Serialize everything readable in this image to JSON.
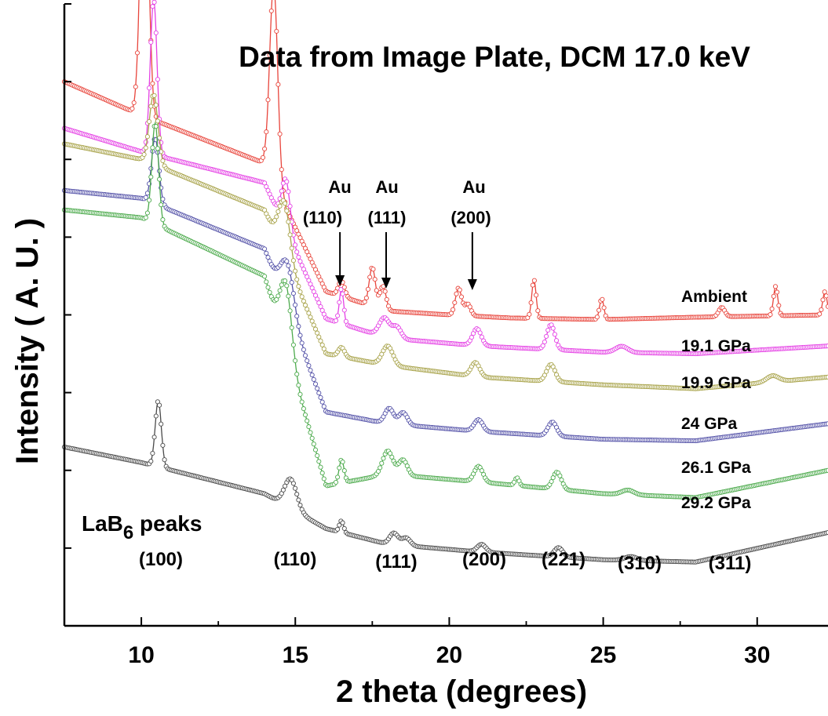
{
  "chart_data": {
    "type": "line",
    "title": "Data from Image Plate, DCM 17.0 keV",
    "xlabel": "2 theta (degrees)",
    "ylabel": "Intensity ( A. U. )",
    "xlim": [
      7.5,
      32.3
    ],
    "ylim": [
      0,
      8
    ],
    "xticks": [
      10,
      15,
      20,
      25,
      30
    ],
    "xtick_labels": [
      "10",
      "15",
      "20",
      "25",
      "30"
    ],
    "y_tick_labels_shown": false,
    "series": [
      {
        "name": "Ambient",
        "color": "#e8453c",
        "baseline": [
          [
            7.5,
            7.0
          ],
          [
            9.8,
            6.6
          ],
          [
            14.0,
            5.95
          ],
          [
            16.0,
            4.3
          ],
          [
            18.0,
            4.05
          ],
          [
            20.0,
            4.0
          ],
          [
            22.0,
            3.96
          ],
          [
            25.0,
            3.94
          ],
          [
            28.0,
            3.97
          ],
          [
            32.3,
            4.0
          ]
        ],
        "peaks": [
          [
            10.1,
            3.75,
            0.13
          ],
          [
            14.3,
            2.55,
            0.13
          ],
          [
            16.5,
            0.2,
            0.1
          ],
          [
            17.5,
            0.5,
            0.1
          ],
          [
            17.85,
            0.3,
            0.1
          ],
          [
            20.3,
            0.35,
            0.1
          ],
          [
            20.6,
            0.15,
            0.1
          ],
          [
            22.75,
            0.5,
            0.07
          ],
          [
            24.95,
            0.27,
            0.07
          ],
          [
            28.85,
            0.12,
            0.1
          ],
          [
            30.6,
            0.38,
            0.07
          ],
          [
            32.2,
            0.3,
            0.07
          ]
        ]
      },
      {
        "name": "19.1 GPa",
        "color": "#e542e5",
        "baseline": [
          [
            7.5,
            6.4
          ],
          [
            10.0,
            6.1
          ],
          [
            14.0,
            5.7
          ],
          [
            16.0,
            3.95
          ],
          [
            18.0,
            3.7
          ],
          [
            21.0,
            3.6
          ],
          [
            25.0,
            3.52
          ],
          [
            28.0,
            3.5
          ],
          [
            32.3,
            3.6
          ]
        ],
        "peaks": [
          [
            10.4,
            2.0,
            0.11
          ],
          [
            14.7,
            0.65,
            0.14
          ],
          [
            16.5,
            0.45,
            0.07
          ],
          [
            17.9,
            0.25,
            0.17
          ],
          [
            18.3,
            0.15,
            0.14
          ],
          [
            20.9,
            0.22,
            0.14
          ],
          [
            23.3,
            0.32,
            0.13
          ],
          [
            25.6,
            0.08,
            0.2
          ]
        ]
      },
      {
        "name": "19.9 GPa",
        "color": "#a8a34a",
        "baseline": [
          [
            7.5,
            6.2
          ],
          [
            10.0,
            6.0
          ],
          [
            14.0,
            5.35
          ],
          [
            16.0,
            3.5
          ],
          [
            18.0,
            3.35
          ],
          [
            21.0,
            3.2
          ],
          [
            25.0,
            3.1
          ],
          [
            28.0,
            3.05
          ],
          [
            32.3,
            3.2
          ]
        ],
        "peaks": [
          [
            10.4,
            0.9,
            0.14
          ],
          [
            14.65,
            0.7,
            0.19
          ],
          [
            16.5,
            0.12,
            0.1
          ],
          [
            18.0,
            0.25,
            0.17
          ],
          [
            20.85,
            0.18,
            0.14
          ],
          [
            23.3,
            0.22,
            0.14
          ],
          [
            30.5,
            0.08,
            0.2
          ]
        ]
      },
      {
        "name": "24 GPa",
        "color": "#5452a8",
        "baseline": [
          [
            7.5,
            5.6
          ],
          [
            10.0,
            5.5
          ],
          [
            14.0,
            4.85
          ],
          [
            16.0,
            2.75
          ],
          [
            18.0,
            2.6
          ],
          [
            21.0,
            2.5
          ],
          [
            25.0,
            2.4
          ],
          [
            28.0,
            2.38
          ],
          [
            32.3,
            2.6
          ]
        ],
        "peaks": [
          [
            10.45,
            0.85,
            0.12
          ],
          [
            14.75,
            0.6,
            0.22
          ],
          [
            18.05,
            0.2,
            0.14
          ],
          [
            18.5,
            0.16,
            0.14
          ],
          [
            20.95,
            0.15,
            0.14
          ],
          [
            23.35,
            0.18,
            0.14
          ]
        ]
      },
      {
        "name": "26.1 GPa",
        "color": "#4caa4c",
        "baseline": [
          [
            7.5,
            5.35
          ],
          [
            10.0,
            5.25
          ],
          [
            14.0,
            4.5
          ],
          [
            16.0,
            1.8
          ],
          [
            18.0,
            1.95
          ],
          [
            21.0,
            1.85
          ],
          [
            25.0,
            1.7
          ],
          [
            28.0,
            1.65
          ],
          [
            32.3,
            2.0
          ]
        ],
        "peaks": [
          [
            10.45,
            1.3,
            0.11
          ],
          [
            14.7,
            0.85,
            0.19
          ],
          [
            16.5,
            0.3,
            0.08
          ],
          [
            18.0,
            0.3,
            0.17
          ],
          [
            18.5,
            0.2,
            0.14
          ],
          [
            20.95,
            0.2,
            0.14
          ],
          [
            22.2,
            0.1,
            0.07
          ],
          [
            23.5,
            0.22,
            0.14
          ],
          [
            25.8,
            0.06,
            0.2
          ]
        ]
      },
      {
        "name": "29.2 GPa",
        "color": "#4a4a4a",
        "baseline": [
          [
            7.5,
            2.3
          ],
          [
            10.0,
            2.1
          ],
          [
            14.0,
            1.7
          ],
          [
            16.0,
            1.25
          ],
          [
            18.0,
            1.05
          ],
          [
            21.0,
            0.95
          ],
          [
            25.0,
            0.85
          ],
          [
            28.0,
            0.82
          ],
          [
            32.3,
            1.2
          ]
        ],
        "peaks": [
          [
            10.55,
            0.85,
            0.1
          ],
          [
            14.85,
            0.38,
            0.2
          ],
          [
            16.5,
            0.15,
            0.07
          ],
          [
            18.2,
            0.15,
            0.14
          ],
          [
            18.6,
            0.1,
            0.14
          ],
          [
            21.05,
            0.1,
            0.14
          ],
          [
            23.55,
            0.12,
            0.14
          ],
          [
            25.9,
            0.05,
            0.2
          ]
        ]
      }
    ],
    "annotations": {
      "au_peaks": [
        {
          "label": "Au",
          "hkl": "(110)",
          "x": 16.45
        },
        {
          "label": "Au",
          "hkl": "(111)",
          "x": 17.95
        },
        {
          "label": "Au",
          "hkl": "(200)",
          "x": 20.75
        }
      ],
      "lab6_title_main": "LaB",
      "lab6_title_sub": "6",
      "lab6_title_rest": " peaks",
      "lab6_peaks": [
        {
          "hkl": "(100)",
          "x": 10.4
        },
        {
          "hkl": "(110)",
          "x": 14.75
        },
        {
          "hkl": "(111)",
          "x": 17.95
        },
        {
          "hkl": "(200)",
          "x": 20.95
        },
        {
          "hkl": "(221)",
          "x": 23.1
        },
        {
          "hkl": "(310)",
          "x": 25.7
        },
        {
          "hkl": "(311)",
          "x": 28.3
        }
      ]
    },
    "grid": false,
    "legend": "inline labels at right end of each curve"
  }
}
